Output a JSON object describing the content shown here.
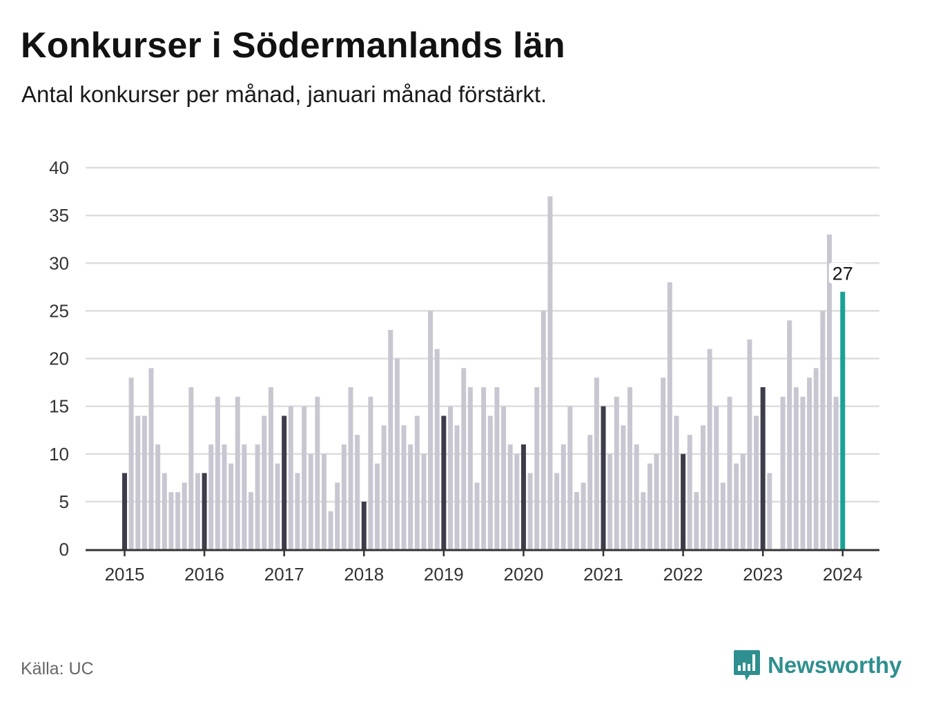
{
  "header": {
    "title": "Konkurser i Södermanlands län",
    "subtitle": "Antal konkurser per månad, januari månad förstärkt."
  },
  "footer": {
    "source": "Källa: UC",
    "brand": "Newsworthy",
    "brand_icon": "bar-chart-speech-icon"
  },
  "colors": {
    "bar": "#c8c7d1",
    "january": "#3d3c4a",
    "latest": "#19a295",
    "grid": "#dddddd",
    "axis": "#333333",
    "brand": "#2f8f8f"
  },
  "chart_data": {
    "type": "bar",
    "title": "Konkurser i Södermanlands län",
    "subtitle": "Antal konkurser per månad, januari månad förstärkt.",
    "xlabel": "",
    "ylabel": "",
    "ylim": [
      0,
      40
    ],
    "yticks": [
      0,
      5,
      10,
      15,
      20,
      25,
      30,
      35,
      40
    ],
    "xticks": [
      "2015",
      "2016",
      "2017",
      "2018",
      "2019",
      "2020",
      "2021",
      "2022",
      "2023",
      "2024"
    ],
    "start": "2015-01",
    "highlight": "January of each year",
    "annotation": {
      "period": "2024-01",
      "label": "27"
    },
    "grid": true,
    "values": [
      8,
      18,
      14,
      14,
      19,
      11,
      8,
      6,
      6,
      7,
      17,
      8,
      8,
      11,
      16,
      11,
      9,
      16,
      11,
      6,
      11,
      14,
      17,
      9,
      14,
      15,
      8,
      15,
      10,
      16,
      10,
      4,
      7,
      11,
      17,
      12,
      5,
      16,
      9,
      13,
      23,
      20,
      13,
      11,
      14,
      10,
      25,
      21,
      14,
      15,
      13,
      19,
      17,
      7,
      17,
      14,
      17,
      15,
      11,
      10,
      11,
      8,
      17,
      25,
      37,
      8,
      11,
      15,
      6,
      7,
      12,
      18,
      15,
      10,
      16,
      13,
      17,
      11,
      6,
      9,
      10,
      18,
      28,
      14,
      10,
      12,
      6,
      13,
      21,
      15,
      7,
      16,
      9,
      10,
      22,
      14,
      17,
      8,
      0,
      16,
      24,
      17,
      16,
      18,
      19,
      25,
      33,
      16,
      27
    ]
  }
}
